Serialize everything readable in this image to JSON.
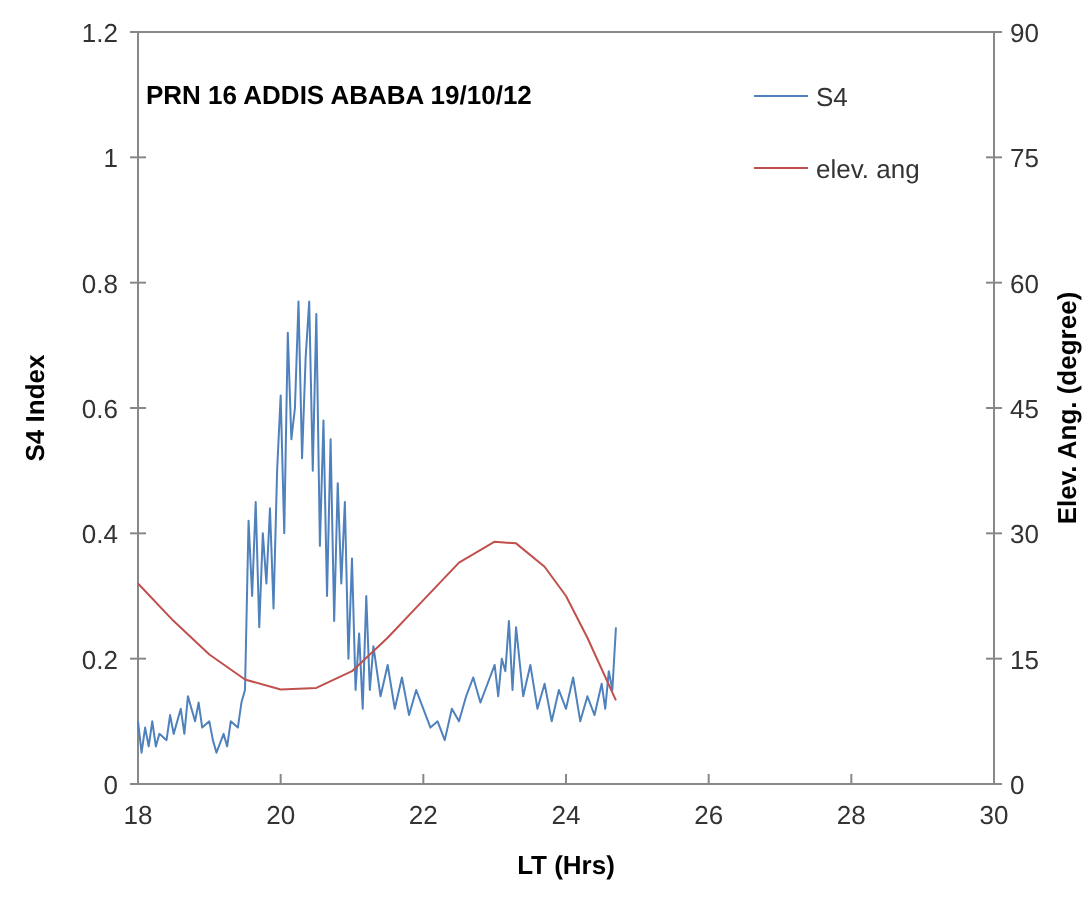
{
  "chart_data": {
    "type": "line",
    "xlabel": "LT (Hrs)",
    "ylabel": "S4 Index",
    "y2label": "Elev. Ang. (degree)",
    "annotations": [
      "PRN 16  ADDIS ABABA  19/10/12"
    ],
    "xlim": [
      18,
      30
    ],
    "xticks": [
      18,
      20,
      22,
      24,
      26,
      28,
      30
    ],
    "ylim": [
      0,
      1.2
    ],
    "yticks": [
      0,
      0.2,
      0.4,
      0.6,
      0.8,
      1,
      1.2
    ],
    "y2lim": [
      0,
      90
    ],
    "y2ticks": [
      0,
      15,
      30,
      45,
      60,
      75,
      90
    ],
    "legend": "top right",
    "grid": false,
    "series": [
      {
        "name": "S4",
        "color": "#4f81bd",
        "x": [
          18,
          18.05,
          18.1,
          18.15,
          18.2,
          18.25,
          18.3,
          18.4,
          18.45,
          18.5,
          18.6,
          18.65,
          18.7,
          18.8,
          18.85,
          18.9,
          19,
          19.05,
          19.1,
          19.2,
          19.25,
          19.3,
          19.4,
          19.45,
          19.5,
          19.55,
          19.6,
          19.65,
          19.7,
          19.75,
          19.8,
          19.85,
          19.9,
          19.95,
          20,
          20.05,
          20.1,
          20.15,
          20.2,
          20.25,
          20.3,
          20.35,
          20.4,
          20.45,
          20.5,
          20.55,
          20.6,
          20.65,
          20.7,
          20.75,
          20.8,
          20.85,
          20.9,
          20.95,
          21,
          21.05,
          21.1,
          21.15,
          21.2,
          21.25,
          21.3,
          21.4,
          21.5,
          21.6,
          21.7,
          21.8,
          21.9,
          22,
          22.1,
          22.2,
          22.3,
          22.4,
          22.5,
          22.6,
          22.7,
          22.8,
          22.9,
          23,
          23.05,
          23.1,
          23.15,
          23.2,
          23.25,
          23.3,
          23.4,
          23.5,
          23.6,
          23.7,
          23.8,
          23.9,
          24,
          24.1,
          24.2,
          24.3,
          24.4,
          24.5,
          24.55,
          24.6,
          24.65,
          24.7
        ],
        "values": [
          0.1,
          0.05,
          0.09,
          0.06,
          0.1,
          0.06,
          0.08,
          0.07,
          0.11,
          0.08,
          0.12,
          0.08,
          0.14,
          0.1,
          0.13,
          0.09,
          0.1,
          0.07,
          0.05,
          0.08,
          0.06,
          0.1,
          0.09,
          0.13,
          0.15,
          0.42,
          0.3,
          0.45,
          0.25,
          0.4,
          0.32,
          0.44,
          0.28,
          0.5,
          0.62,
          0.4,
          0.72,
          0.55,
          0.6,
          0.77,
          0.52,
          0.68,
          0.77,
          0.5,
          0.75,
          0.38,
          0.58,
          0.3,
          0.55,
          0.26,
          0.48,
          0.32,
          0.45,
          0.2,
          0.36,
          0.15,
          0.24,
          0.12,
          0.3,
          0.15,
          0.22,
          0.14,
          0.19,
          0.12,
          0.17,
          0.11,
          0.15,
          0.12,
          0.09,
          0.1,
          0.07,
          0.12,
          0.1,
          0.14,
          0.17,
          0.13,
          0.16,
          0.19,
          0.14,
          0.2,
          0.18,
          0.26,
          0.15,
          0.25,
          0.14,
          0.19,
          0.12,
          0.16,
          0.1,
          0.15,
          0.12,
          0.17,
          0.1,
          0.14,
          0.11,
          0.16,
          0.12,
          0.18,
          0.15,
          0.25
        ]
      },
      {
        "name": "elev. ang",
        "color": "#c0504d",
        "axis": "y2",
        "x": [
          18,
          18.5,
          19,
          19.5,
          20,
          20.5,
          21,
          21.5,
          22,
          22.5,
          23,
          23.3,
          23.7,
          24,
          24.3,
          24.7
        ],
        "values": [
          24,
          19.5,
          15.5,
          12.5,
          11.3,
          11.5,
          13.5,
          17.5,
          22,
          26.5,
          29,
          28.8,
          26,
          22.5,
          17.5,
          10
        ]
      }
    ]
  }
}
